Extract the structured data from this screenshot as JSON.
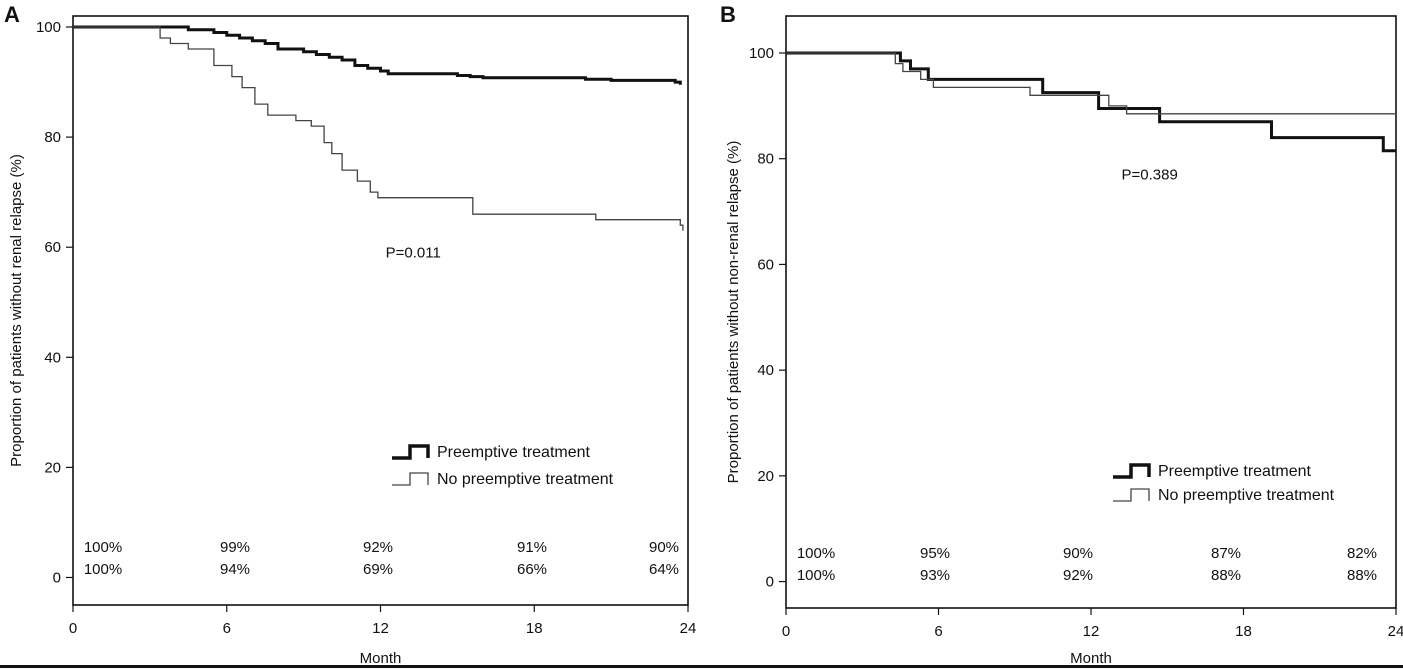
{
  "chart_data": [
    {
      "type": "line",
      "panel": "A",
      "xlabel": "Month",
      "ylabel": "Proportion of patients without renal relapse (%)",
      "xlim": [
        0,
        24
      ],
      "ylim": [
        -5,
        102
      ],
      "xticks": [
        0,
        6,
        12,
        18,
        24
      ],
      "yticks": [
        0,
        20,
        40,
        60,
        80,
        100
      ],
      "annotation": "P=0.011",
      "grid": false,
      "legend_position": "lower-right",
      "series": [
        {
          "name": "Preemptive treatment",
          "style": "thick",
          "color": "#111111",
          "points": [
            [
              0,
              100
            ],
            [
              3.2,
              100
            ],
            [
              4.5,
              99.5
            ],
            [
              5.5,
              99
            ],
            [
              6,
              98.5
            ],
            [
              6.5,
              98
            ],
            [
              7,
              97.5
            ],
            [
              7.5,
              97
            ],
            [
              8,
              96
            ],
            [
              9,
              95.5
            ],
            [
              9.5,
              95
            ],
            [
              10,
              94.5
            ],
            [
              10.5,
              94
            ],
            [
              11,
              93
            ],
            [
              11.5,
              92.5
            ],
            [
              12,
              92
            ],
            [
              12.3,
              91.5
            ],
            [
              14,
              91.5
            ],
            [
              15,
              91.2
            ],
            [
              15.5,
              91
            ],
            [
              16,
              90.8
            ],
            [
              20,
              90.5
            ],
            [
              21,
              90.3
            ],
            [
              23.5,
              90
            ],
            [
              23.6,
              90
            ],
            [
              23.7,
              89.5
            ]
          ],
          "at_risk_percent": [
            "100%",
            "99%",
            "92%",
            "91%",
            "90%"
          ]
        },
        {
          "name": "No preemptive treatment",
          "style": "thin",
          "color": "#444444",
          "points": [
            [
              0,
              100
            ],
            [
              3,
              100
            ],
            [
              3.4,
              98
            ],
            [
              3.8,
              97
            ],
            [
              4.5,
              96
            ],
            [
              5.5,
              93
            ],
            [
              6.2,
              91
            ],
            [
              6.6,
              89
            ],
            [
              7.1,
              86
            ],
            [
              7.6,
              84
            ],
            [
              8.7,
              83
            ],
            [
              9.3,
              82
            ],
            [
              9.8,
              79
            ],
            [
              10.1,
              77
            ],
            [
              10.5,
              74
            ],
            [
              11.1,
              72
            ],
            [
              11.6,
              70
            ],
            [
              11.9,
              69
            ],
            [
              15,
              69
            ],
            [
              15.6,
              66
            ],
            [
              20.4,
              65
            ],
            [
              23.7,
              64
            ],
            [
              23.8,
              63
            ]
          ],
          "at_risk_percent": [
            "100%",
            "94%",
            "69%",
            "66%",
            "64%"
          ]
        }
      ]
    },
    {
      "type": "line",
      "panel": "B",
      "xlabel": "Month",
      "ylabel": "Proportion of patients without non-renal relapse (%)",
      "xlim": [
        0,
        24
      ],
      "ylim": [
        -5,
        107
      ],
      "xticks": [
        0,
        6,
        12,
        18,
        24
      ],
      "yticks": [
        0,
        20,
        40,
        60,
        80,
        100
      ],
      "annotation": "P=0.389",
      "grid": false,
      "legend_position": "lower-right",
      "series": [
        {
          "name": "Preemptive treatment",
          "style": "thick",
          "color": "#111111",
          "points": [
            [
              0,
              100
            ],
            [
              4.4,
              100
            ],
            [
              4.5,
              98.5
            ],
            [
              4.9,
              97
            ],
            [
              5.6,
              95
            ],
            [
              10,
              95
            ],
            [
              10.1,
              92.5
            ],
            [
              12.2,
              92.5
            ],
            [
              12.3,
              89.5
            ],
            [
              14.6,
              89.5
            ],
            [
              14.7,
              87
            ],
            [
              19,
              87
            ],
            [
              19.1,
              84
            ],
            [
              23.4,
              84
            ],
            [
              23.5,
              81.5
            ],
            [
              24,
              81.5
            ]
          ],
          "at_risk_percent": [
            "100%",
            "95%",
            "90%",
            "87%",
            "82%"
          ]
        },
        {
          "name": "No preemptive treatment",
          "style": "thin",
          "color": "#444444",
          "points": [
            [
              0,
              100
            ],
            [
              4.2,
              100
            ],
            [
              4.3,
              98
            ],
            [
              4.6,
              96.5
            ],
            [
              5.3,
              95
            ],
            [
              5.8,
              93.5
            ],
            [
              9.5,
              93.5
            ],
            [
              9.6,
              92
            ],
            [
              12.5,
              92
            ],
            [
              12.7,
              90
            ],
            [
              13.4,
              88.5
            ],
            [
              24,
              88.5
            ]
          ],
          "at_risk_percent": [
            "100%",
            "93%",
            "92%",
            "88%",
            "88%"
          ]
        }
      ]
    }
  ]
}
